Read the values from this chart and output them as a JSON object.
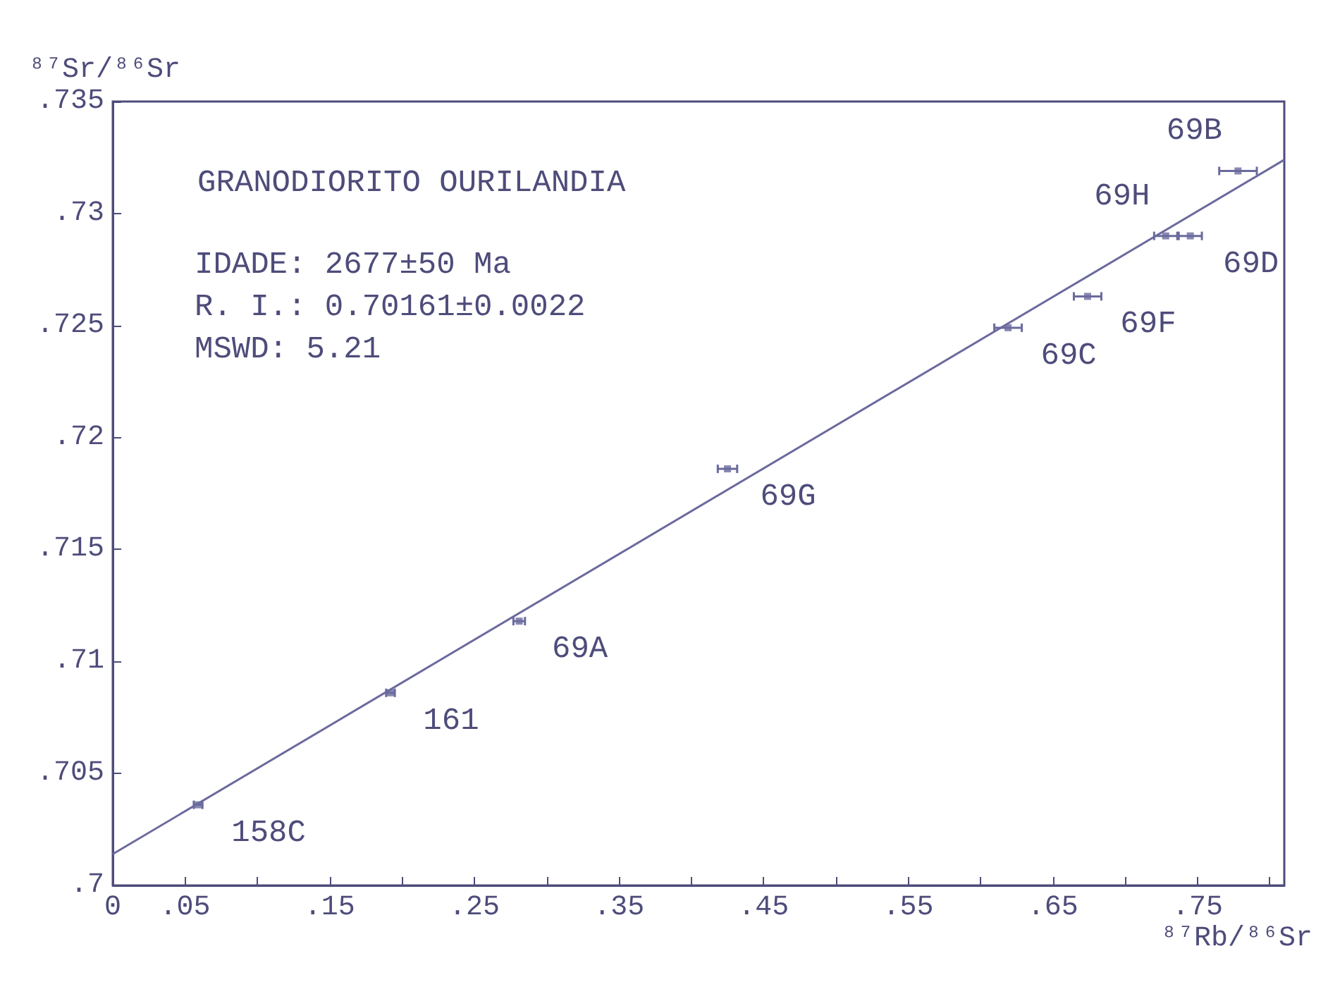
{
  "chart_data": {
    "type": "scatter",
    "title": "GRANODIORITO OURILANDIA",
    "xlabel": "⁸⁷Rb/⁸⁶Sr",
    "ylabel": "⁸⁷Sr/⁸⁶Sr",
    "annotations": [
      "IDADE: 2677±50 Ma",
      "R. I.: 0.70161±0.0022",
      "MSWD: 5.21",
      {
        "text": "158C",
        "x": 0.059,
        "y": 0.7036
      },
      {
        "text": "161",
        "x": 0.192,
        "y": 0.7086
      },
      {
        "text": "69A",
        "x": 0.281,
        "y": 0.7118
      },
      {
        "text": "69G",
        "x": 0.425,
        "y": 0.7186
      },
      {
        "text": "69C",
        "x": 0.619,
        "y": 0.7249
      },
      {
        "text": "69F",
        "x": 0.674,
        "y": 0.7263
      },
      {
        "text": "69D",
        "x": 0.745,
        "y": 0.729
      },
      {
        "text": "69H",
        "x": 0.728,
        "y": 0.729
      },
      {
        "text": "69B",
        "x": 0.778,
        "y": 0.7319
      }
    ],
    "series": [
      {
        "color": "#6b6a9e",
        "x": [
          0.059,
          0.192,
          0.281,
          0.425,
          0.619,
          0.674,
          0.745,
          0.728,
          0.778
        ],
        "values": [
          0.7036,
          0.7086,
          0.7118,
          0.7186,
          0.7249,
          0.7263,
          0.729,
          0.729,
          0.7319
        ],
        "xerrors": [
          0.003,
          0.003,
          0.004,
          0.0067,
          0.0095,
          0.0095,
          0.008,
          0.008,
          0.013
        ]
      },
      {
        "type": "line",
        "marker": "none",
        "color": "#6b6a9e",
        "x": [
          0,
          0.81
        ],
        "values": [
          0.7014,
          0.7324
        ]
      }
    ],
    "xlim": [
      0,
      0.81
    ],
    "ylim": [
      0.7,
      0.735
    ],
    "xticks": [
      {
        "value": 0,
        "label": "0"
      },
      {
        "value": 0.05,
        "label": ".05"
      },
      {
        "value": 0.1,
        "label": null
      },
      {
        "value": 0.15,
        "label": ".15"
      },
      {
        "value": 0.2,
        "label": null
      },
      {
        "value": 0.25,
        "label": ".25"
      },
      {
        "value": 0.3,
        "label": null
      },
      {
        "value": 0.35,
        "label": ".35"
      },
      {
        "value": 0.4,
        "label": null
      },
      {
        "value": 0.45,
        "label": ".45"
      },
      {
        "value": 0.5,
        "label": null
      },
      {
        "value": 0.55,
        "label": ".55"
      },
      {
        "value": 0.6,
        "label": null
      },
      {
        "value": 0.65,
        "label": ".65"
      },
      {
        "value": 0.7,
        "label": null
      },
      {
        "value": 0.75,
        "label": ".75"
      },
      {
        "value": 0.8,
        "label": null
      }
    ],
    "yticks": [
      {
        "value": 0.7,
        "label": ".7"
      },
      {
        "value": 0.705,
        "label": ".705"
      },
      {
        "value": 0.71,
        "label": ".71"
      },
      {
        "value": 0.715,
        "label": ".715"
      },
      {
        "value": 0.72,
        "label": ".72"
      },
      {
        "value": 0.725,
        "label": ".725"
      },
      {
        "value": 0.73,
        "label": ".73"
      },
      {
        "value": 0.735,
        "label": ".735"
      }
    ],
    "grid": false,
    "marker": "square",
    "line_style": "solid"
  }
}
